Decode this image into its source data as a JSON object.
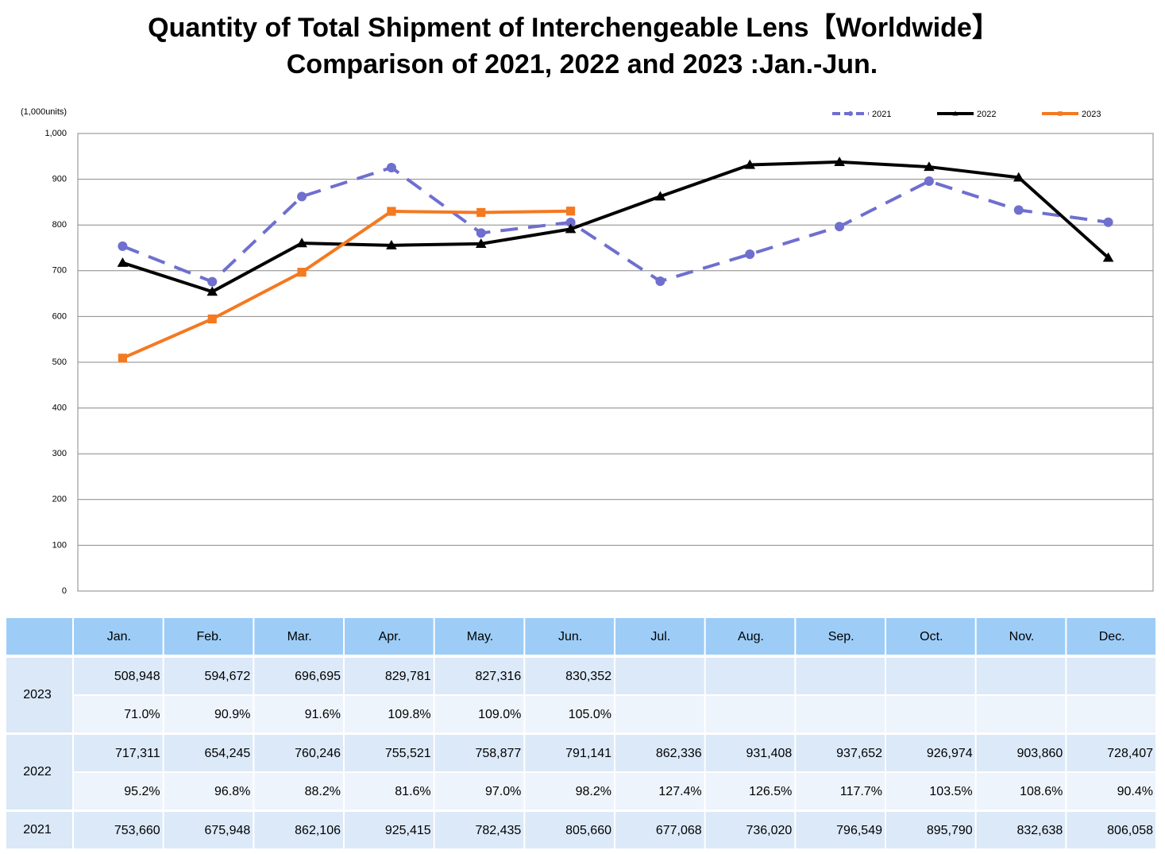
{
  "chart_data": {
    "type": "line",
    "title": "Quantity of Total Shipment of Interchengeable Lens【Worldwide】",
    "subtitle": "Comparison of 2021, 2022 and 2023 :Jan.-Jun.",
    "y_label": "(1,000units)",
    "categories": [
      null,
      null,
      null,
      null,
      null,
      null,
      null,
      null,
      null,
      null,
      null,
      null
    ],
    "ylim": [
      0,
      1000
    ],
    "yticks": [
      0,
      100,
      200,
      300,
      400,
      500,
      600,
      700,
      800,
      900,
      {
        "value": 1000,
        "label": "1,000"
      }
    ],
    "grid": true,
    "legend": "top-right",
    "series": [
      {
        "name": "2021",
        "color": "#6f6fcf",
        "marker": "circle",
        "dash": true,
        "values": [
          753.66,
          675.948,
          862.106,
          925.415,
          782.435,
          805.66,
          677.068,
          736.02,
          796.549,
          895.79,
          832.638,
          806.058
        ]
      },
      {
        "name": "2022",
        "color": "#000000",
        "marker": "triangle",
        "dash": false,
        "values": [
          717.311,
          654.245,
          760.246,
          755.521,
          758.877,
          791.141,
          862.336,
          931.408,
          937.652,
          926.974,
          903.86,
          728.407
        ]
      },
      {
        "name": "2023",
        "color": "#f47920",
        "marker": "square",
        "dash": false,
        "values": [
          508.948,
          594.672,
          696.695,
          829.781,
          827.316,
          830.352,
          null,
          null,
          null,
          null,
          null,
          null
        ]
      }
    ]
  },
  "table": {
    "header": [
      "Jan.",
      "Feb.",
      "Mar.",
      "Apr.",
      "May.",
      "Jun.",
      "Jul.",
      "Aug.",
      "Sep.",
      "Oct.",
      "Nov.",
      "Dec."
    ],
    "rows": [
      {
        "label": "2023",
        "values": [
          "508,948",
          "594,672",
          "696,695",
          "829,781",
          "827,316",
          "830,352"
        ],
        "ratios": [
          "71.0%",
          "90.9%",
          "91.6%",
          "109.8%",
          "109.0%",
          "105.0%"
        ]
      },
      {
        "label": "2022",
        "values": [
          "717,311",
          "654,245",
          "760,246",
          "755,521",
          "758,877",
          "791,141",
          "862,336",
          "931,408",
          "937,652",
          "926,974",
          "903,860",
          "728,407"
        ],
        "ratios": [
          "95.2%",
          "96.8%",
          "88.2%",
          "81.6%",
          "97.0%",
          "98.2%",
          "127.4%",
          "126.5%",
          "117.7%",
          "103.5%",
          "108.6%",
          "90.4%"
        ]
      },
      {
        "label": "2021",
        "values": [
          "753,660",
          "675,948",
          "862,106",
          "925,415",
          "782,435",
          "805,660",
          "677,068",
          "736,020",
          "796,549",
          "895,790",
          "832,638",
          "806,058"
        ]
      }
    ]
  }
}
